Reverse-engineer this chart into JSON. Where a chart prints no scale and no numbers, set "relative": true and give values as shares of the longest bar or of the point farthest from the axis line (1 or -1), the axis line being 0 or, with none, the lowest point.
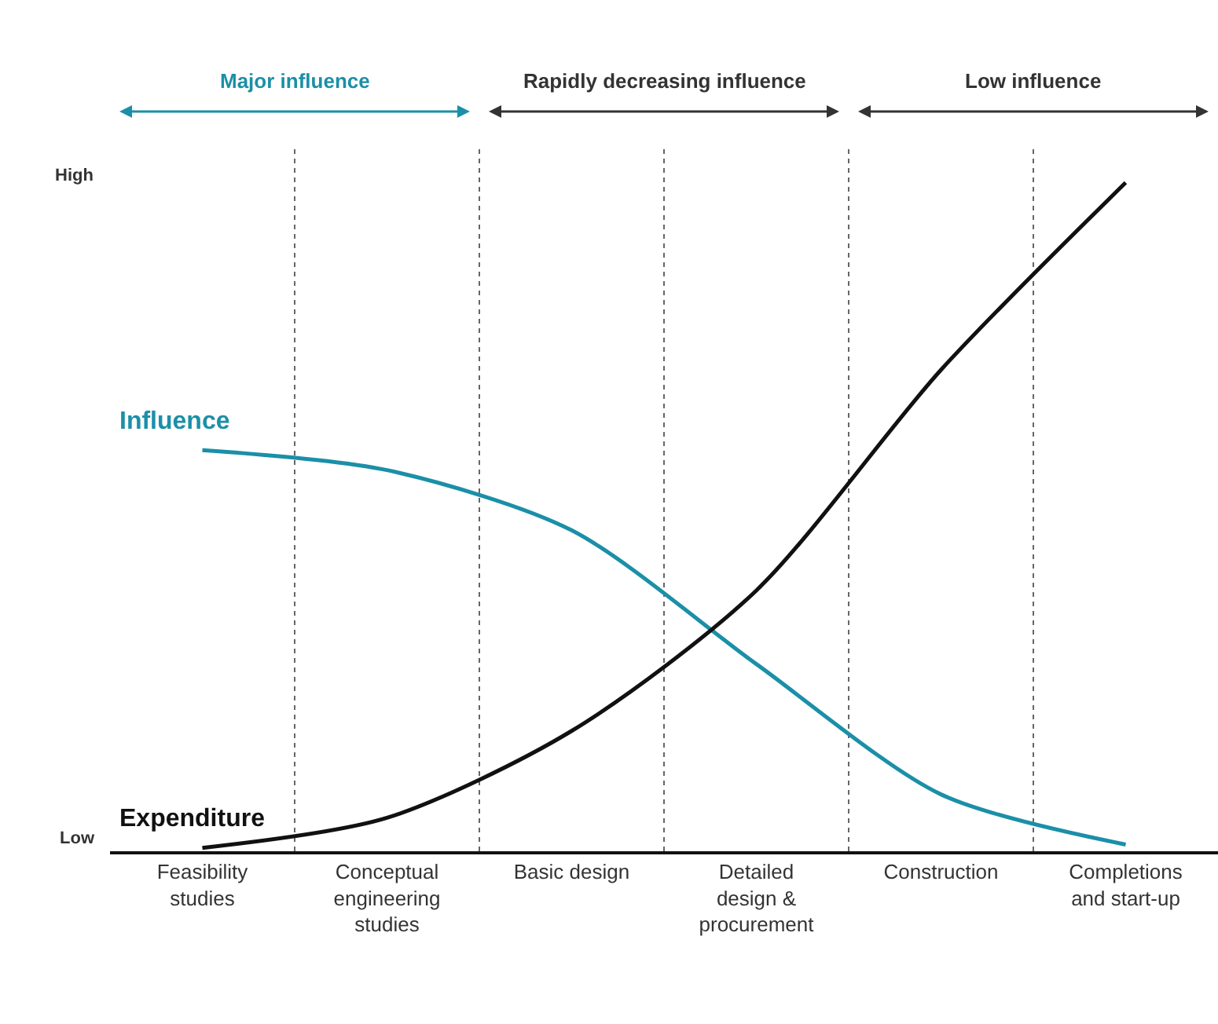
{
  "chart_data": {
    "type": "line",
    "categories": [
      "Feasibility studies",
      "Conceptual engineering studies",
      "Basic design",
      "Detailed design & procurement",
      "Construction",
      "Completions and start-up"
    ],
    "relative": true,
    "series": [
      {
        "name": "Influence",
        "color": "#1b8fa8",
        "values": [
          0.6,
          0.57,
          0.48,
          0.28,
          0.085,
          0.01
        ]
      },
      {
        "name": "Expenditure",
        "color": "#111111",
        "values": [
          0.005,
          0.05,
          0.18,
          0.39,
          0.72,
          1
        ]
      }
    ],
    "grid": "x",
    "legend": false,
    "marker": "none",
    "line_style": "solid",
    "annotations": [
      "Major influence",
      "Rapidly decreasing influence",
      "Low influence",
      "High",
      "Low"
    ]
  }
}
